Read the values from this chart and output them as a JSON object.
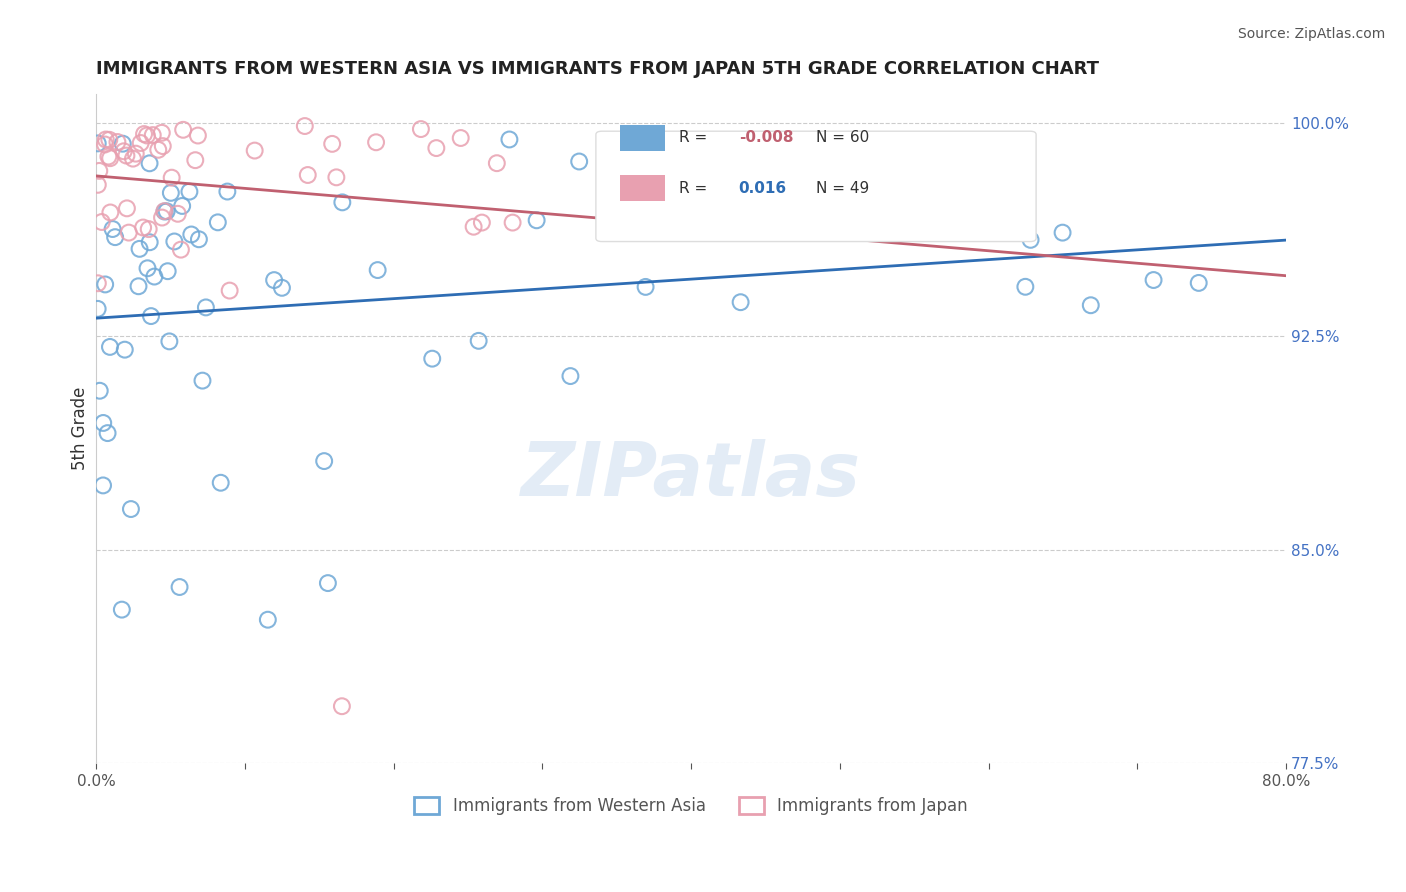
{
  "title": "IMMIGRANTS FROM WESTERN ASIA VS IMMIGRANTS FROM JAPAN 5TH GRADE CORRELATION CHART",
  "source": "Source: ZipAtlas.com",
  "ylabel": "5th Grade",
  "xlim": [
    0.0,
    0.8
  ],
  "ylim": [
    0.775,
    1.01
  ],
  "blue_color": "#6fa8d6",
  "pink_color": "#e8a0b0",
  "blue_line_color": "#2e6db4",
  "pink_line_color": "#c06070",
  "blue_R": -0.008,
  "blue_N": 60,
  "pink_R": 0.016,
  "pink_N": 49,
  "legend_label_blue": "Immigrants from Western Asia",
  "legend_label_pink": "Immigrants from Japan",
  "watermark": "ZIPatlas",
  "right_ytick_color": "#4472c4",
  "title_color": "#222222",
  "source_color": "#555555"
}
